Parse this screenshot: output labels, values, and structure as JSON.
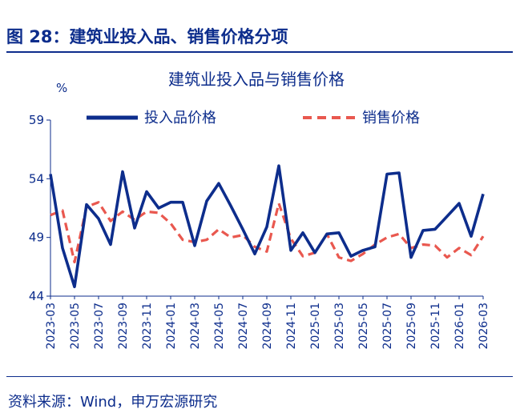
{
  "figure": {
    "title": "图 28：建筑业投入品、销售价格分项",
    "source": "资料来源：Wind，申万宏源研究"
  },
  "colors": {
    "navy": "#0d2d8c",
    "red": "#e9584f"
  },
  "chart_data": {
    "type": "line",
    "title": "建筑业投入品与销售价格",
    "ylabel": "%",
    "ylim": [
      44,
      59
    ],
    "yticks": [
      44,
      49,
      54,
      59
    ],
    "grid": false,
    "legend_position": "top",
    "x": [
      "2023-03",
      "2023-04",
      "2023-05",
      "2023-06",
      "2023-07",
      "2023-08",
      "2023-09",
      "2023-10",
      "2023-11",
      "2023-12",
      "2024-01",
      "2024-02",
      "2024-03",
      "2024-04",
      "2024-05",
      "2024-06",
      "2024-07",
      "2024-08",
      "2024-09",
      "2024-10",
      "2024-11",
      "2024-12",
      "2025-01",
      "2025-02",
      "2025-03",
      "2025-04",
      "2025-05",
      "2025-06",
      "2025-07",
      "2025-08",
      "2025-09",
      "2025-10",
      "2025-11",
      "2025-12",
      "2026-01",
      "2026-02",
      "2026-03"
    ],
    "x_tick_labels": [
      "2023-03",
      "2023-05",
      "2023-07",
      "2023-09",
      "2023-11",
      "2024-01",
      "2024-03",
      "2024-05",
      "2024-07",
      "2024-09",
      "2024-11",
      "2025-01",
      "2025-03",
      "2025-05",
      "2025-07",
      "2025-09",
      "2025-11",
      "2026-01",
      "2026-03"
    ],
    "series": [
      {
        "name": "投入品价格",
        "style": "solid",
        "color": "#0d2d8c",
        "values": [
          54.4,
          48.1,
          44.8,
          51.8,
          50.6,
          48.4,
          54.6,
          49.8,
          52.9,
          51.5,
          52.0,
          52.0,
          48.3,
          52.1,
          53.6,
          51.7,
          49.7,
          47.6,
          49.9,
          55.1,
          47.9,
          49.4,
          47.7,
          49.3,
          49.4,
          47.4,
          47.9,
          48.2,
          54.4,
          54.5,
          47.3,
          49.6,
          49.7,
          50.8,
          51.9,
          49.1,
          52.7
        ]
      },
      {
        "name": "销售价格",
        "style": "dashed",
        "color": "#e9584f",
        "values": [
          50.9,
          51.3,
          46.9,
          51.6,
          52.0,
          50.4,
          51.2,
          50.5,
          51.2,
          51.1,
          50.2,
          48.8,
          48.6,
          48.8,
          49.7,
          49.0,
          49.2,
          48.2,
          47.8,
          51.9,
          48.9,
          47.4,
          47.7,
          49.3,
          47.3,
          47.0,
          47.6,
          48.4,
          49.0,
          49.3,
          48.1,
          48.4,
          48.3,
          47.3,
          48.1,
          47.5,
          49.1
        ]
      }
    ]
  }
}
